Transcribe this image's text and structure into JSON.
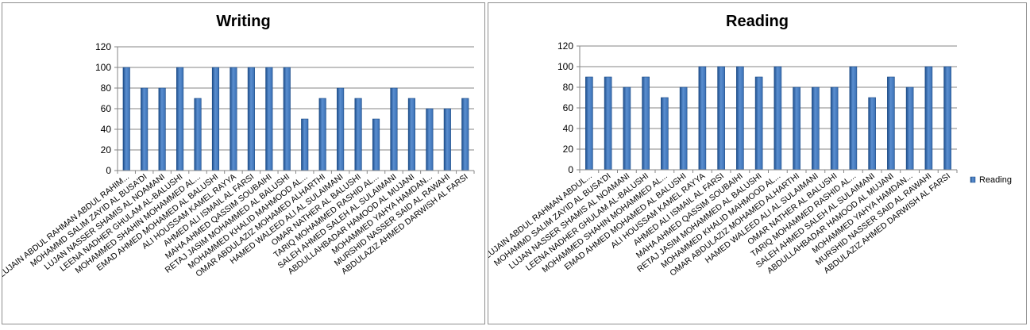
{
  "colors": {
    "bar_dark": "#1d4e8c",
    "bar_mid": "#5b8fd0",
    "bar_light": "#3a70b5",
    "grid": "#868686",
    "axis": "#868686"
  },
  "chart_data": [
    {
      "type": "bar",
      "title": "Writing",
      "categories": [
        "LUJAIN ABDUL RAHMAN ABDUL RAHIM...",
        "MOHAMMD SALIM ZAYID AL BUSA'DI",
        "LUJAN NASSER SHAMIS AL NOAMANI",
        "LEENA NADHER GHULAM AL-BALUSHI",
        "MOHAMMED SHAHIN MOHAMMED AL...",
        "EMAD AHMED MOHAMED AL BALUSHI",
        "ALI HOUSSAM KAMEL RAYYA",
        "AHMED ALI ISMAIL AL FARSI",
        "MAHA AHMED QASSIM SOUBAIHI",
        "RETAJ JASIM MOHAMMED AL BALUSHI",
        "MOHAMMED KHALID MAHMOOD AL...",
        "OMAR ABDULAZIZ MOHAMED ALHARTHI",
        "HAMED WALEED ALI AL SULAIMANI",
        "OMAR NATHER AL BALUSHI",
        "TARIQ MOHAMMED RASHID AL...",
        "SALEH AHMED SALEH AL SULAIMANI",
        "ABDULLAHBADAR HAMOOD AL MUJANI",
        "MOHAMMED YAHYA HAMDAN...",
        "MURSHID NASSER SAID AL RAWAHI",
        "ABDULAZIZ AHMED DARWISH AL FARSI"
      ],
      "values": [
        100,
        80,
        80,
        100,
        70,
        100,
        100,
        100,
        100,
        100,
        50,
        70,
        80,
        70,
        50,
        80,
        70,
        60,
        60,
        70
      ],
      "ylim": [
        0,
        120
      ],
      "yticks": [
        "0",
        "20",
        "40",
        "60",
        "80",
        "100",
        "120"
      ],
      "grid": true,
      "legend": null
    },
    {
      "type": "bar",
      "title": "Reading",
      "categories": [
        "LUJAIN ABDUL RAHMAN ABDUL...",
        "MOHAMMD SALIM ZAYID AL BUSA'DI",
        "LUJAN NASSER SHAMIS AL NOAMANI",
        "LEENA NADHER GHULAM AL-BALUSHI",
        "MOHAMMED SHAHIN MOHAMMED AL...",
        "EMAD AHMED MOHAMED AL BALUSHI",
        "ALI HOUSSAM KAMEL RAYYA",
        "AHMED ALI ISMAIL AL FARSI",
        "MAHA AHMED QASSIM SOUBAIHI",
        "RETAJ JASIM MOHAMMED AL BALUSHI",
        "MOHAMMED KHALID MAHMOOD AL...",
        "OMAR ABDULAZIZ MOHAMED ALHARTHI",
        "HAMED WALEED ALI AL SULAIMANI",
        "OMAR NATHER AL BALUSHI",
        "TARIQ MOHAMMED RASHID AL...",
        "SALEH AHMED SALEH AL SULAIMANI",
        "ABDULLAHBADAR HAMOOD AL MUJANI",
        "MOHAMMED YAHYA HAMDAN...",
        "MURSHID NASSER SAID AL RAWAHI",
        "ABDULAZIZ AHMED DARWISH AL FARSI"
      ],
      "values": [
        90,
        90,
        80,
        90,
        70,
        80,
        100,
        100,
        100,
        90,
        100,
        80,
        80,
        80,
        100,
        70,
        90,
        80,
        100,
        100
      ],
      "ylim": [
        0,
        120
      ],
      "yticks": [
        "0",
        "20",
        "40",
        "60",
        "80",
        "100",
        "120"
      ],
      "grid": true,
      "legend": {
        "position": "right",
        "entries": [
          "Reading"
        ]
      }
    }
  ]
}
